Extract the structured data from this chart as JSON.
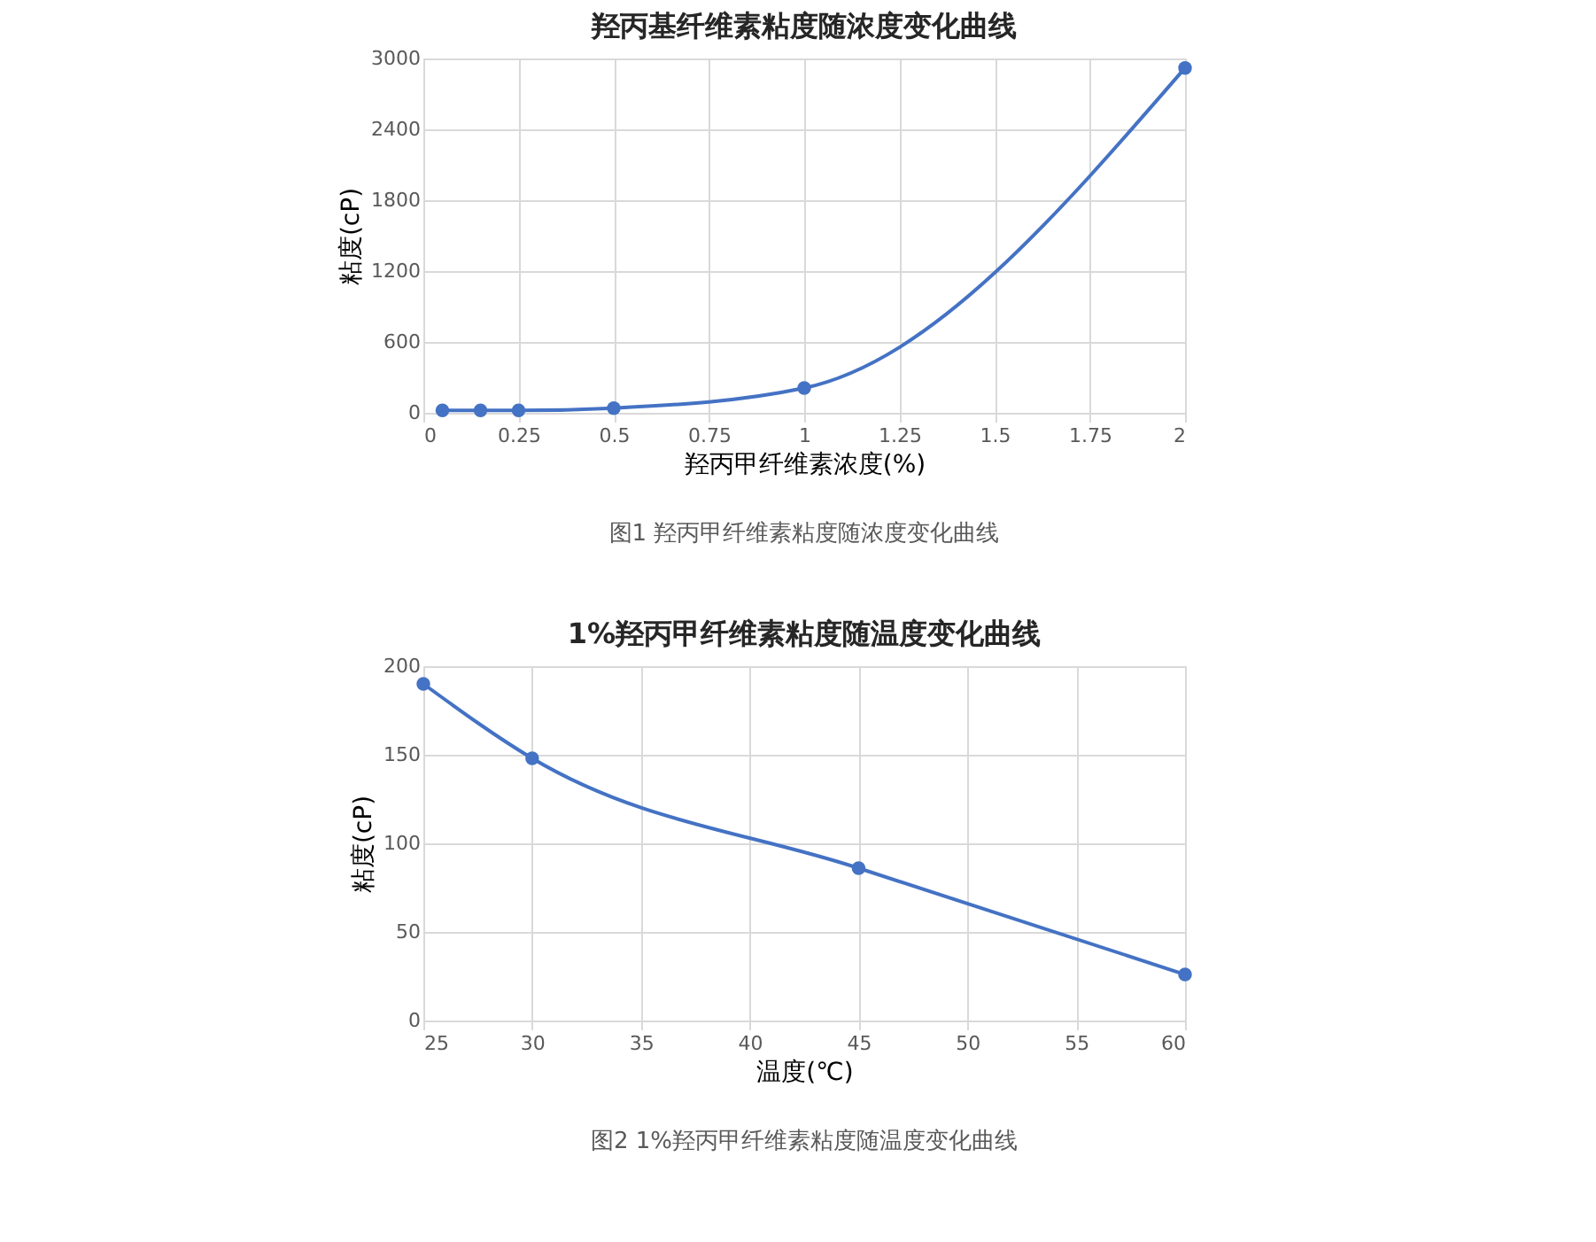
{
  "chart_data": [
    {
      "type": "line",
      "title": "羟丙基纤维素粘度随浓度变化曲线",
      "xlabel": "羟丙甲纤维素浓度(%)",
      "ylabel": "粘度(cP)",
      "x": [
        0.05,
        0.15,
        0.25,
        0.5,
        1,
        2
      ],
      "series": [
        {
          "color": "#4472c4",
          "values": [
            20,
            20,
            20,
            40,
            210,
            2920
          ]
        }
      ],
      "xlim": [
        0,
        2
      ],
      "xticks": [
        0,
        0.25,
        0.5,
        0.75,
        1,
        1.25,
        1.5,
        1.75,
        2
      ],
      "ylim": [
        0,
        3000
      ],
      "yticks": [
        0,
        600,
        1200,
        1800,
        2400,
        3000
      ],
      "grid": true,
      "marker": "circle",
      "line_style": "solid",
      "annotations": [
        "图1 羟丙甲纤维素粘度随浓度变化曲线"
      ]
    },
    {
      "type": "line",
      "title": "1%羟丙甲纤维素粘度随温度变化曲线",
      "xlabel": "温度(℃)",
      "ylabel": "粘度(cP)",
      "x": [
        25,
        30,
        45,
        60
      ],
      "series": [
        {
          "color": "#4472c4",
          "values": [
            190,
            148,
            86,
            26
          ]
        }
      ],
      "xlim": [
        25,
        60
      ],
      "xticks": [
        25,
        30,
        35,
        40,
        45,
        50,
        55,
        60
      ],
      "ylim": [
        0,
        200
      ],
      "yticks": [
        0,
        50,
        100,
        150,
        200
      ],
      "grid": true,
      "marker": "circle",
      "line_style": "solid",
      "annotations": [
        "图2 1%羟丙甲纤维素粘度随温度变化曲线"
      ]
    }
  ]
}
